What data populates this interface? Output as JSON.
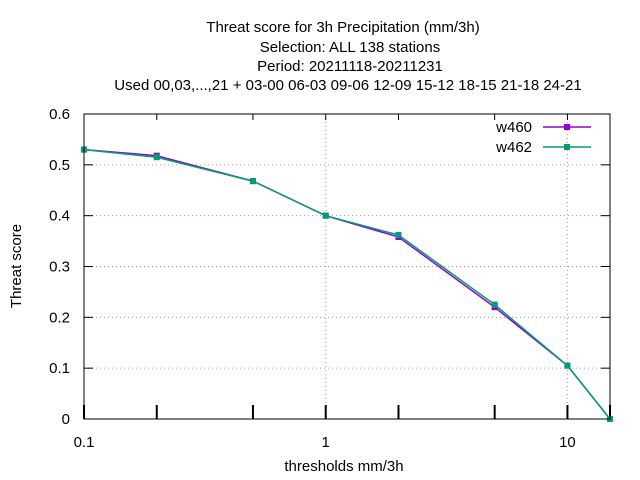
{
  "chart_data": {
    "type": "line",
    "title_lines": [
      "Threat score  for 3h Precipitation (mm/3h)",
      "Selection: ALL     138 stations",
      "Period: 20211118-20211231",
      "Used  00,03,...,21  + 03-00 06-03 09-06 12-09 15-12 18-15 21-18 24-21"
    ],
    "xlabel": "thresholds mm/3h",
    "ylabel": "Threat score",
    "xscale": "log",
    "xlim": [
      0.1,
      15
    ],
    "ylim": [
      0,
      0.6
    ],
    "grid": true,
    "legend_position": "top-right",
    "x_ticks": [
      {
        "value": 0.1,
        "label": "0.1"
      },
      {
        "value": 1,
        "label": "1"
      },
      {
        "value": 10,
        "label": "10"
      }
    ],
    "x_minor_ticks": [
      0.2,
      0.5,
      2,
      5,
      15
    ],
    "y_ticks": [
      {
        "value": 0,
        "label": "0"
      },
      {
        "value": 0.1,
        "label": "0.1"
      },
      {
        "value": 0.2,
        "label": "0.2"
      },
      {
        "value": 0.3,
        "label": "0.3"
      },
      {
        "value": 0.4,
        "label": "0.4"
      },
      {
        "value": 0.5,
        "label": "0.5"
      },
      {
        "value": 0.6,
        "label": "0.6"
      }
    ],
    "x": [
      0.1,
      0.2,
      0.5,
      1,
      2,
      5,
      10,
      15
    ],
    "series": [
      {
        "name": "w460",
        "color": "#9400d3",
        "values": [
          0.53,
          0.518,
          0.468,
          0.4,
          0.358,
          0.22,
          0.105,
          0.0
        ]
      },
      {
        "name": "w462",
        "color": "#009e73",
        "values": [
          0.53,
          0.515,
          0.468,
          0.4,
          0.362,
          0.225,
          0.105,
          0.0
        ]
      }
    ]
  }
}
